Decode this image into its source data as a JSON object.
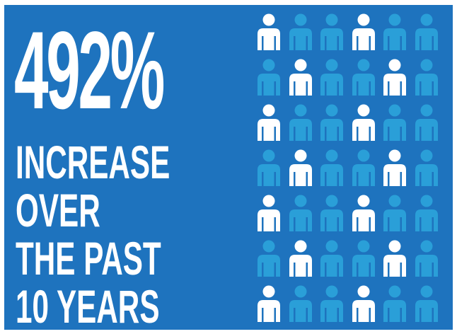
{
  "stat": {
    "value": "492%",
    "lines": [
      "INCREASE",
      "OVER",
      "THE PAST",
      "10 YEARS"
    ]
  },
  "colors": {
    "background": "#1e73be",
    "icon": "#2a9fd8",
    "highlight": "#ffffff"
  },
  "people_grid": {
    "icon": "person-icon",
    "rows": [
      [
        1,
        0,
        0,
        1,
        0,
        0
      ],
      [
        0,
        1,
        0,
        0,
        1,
        0
      ],
      [
        1,
        0,
        0,
        1,
        0,
        0
      ],
      [
        0,
        1,
        0,
        0,
        1,
        0
      ],
      [
        1,
        0,
        0,
        1,
        0,
        0
      ],
      [
        0,
        1,
        0,
        0,
        1,
        0
      ],
      [
        1,
        0,
        0,
        1,
        0,
        0
      ]
    ]
  }
}
